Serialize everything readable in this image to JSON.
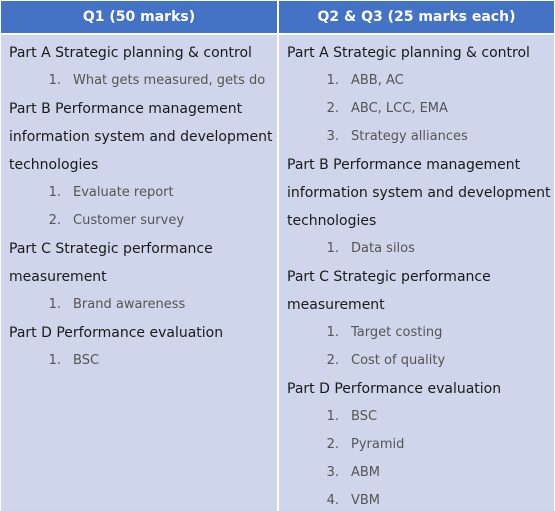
{
  "headers": {
    "left": "Q1 (50 marks)",
    "right": "Q2 & Q3 (25 marks each)"
  },
  "left": {
    "partA": {
      "title": "Part A Strategic planning & control",
      "items": [
        {
          "num": "1.",
          "text": "What gets measured, gets do"
        }
      ]
    },
    "partB": {
      "title_lines": [
        "Part B Performance management",
        "information system and development in",
        "technologies"
      ],
      "items": [
        {
          "num": "1.",
          "text": "Evaluate report"
        },
        {
          "num": "2.",
          "text": "Customer survey"
        }
      ]
    },
    "partC": {
      "title_lines": [
        "Part C Strategic performance",
        "measurement"
      ],
      "items": [
        {
          "num": "1.",
          "text": "Brand awareness"
        }
      ]
    },
    "partD": {
      "title": "Part D Performance evaluation",
      "items": [
        {
          "num": "1.",
          "text": "BSC"
        }
      ]
    }
  },
  "right": {
    "partA": {
      "title": "Part A Strategic planning & control",
      "items": [
        {
          "num": "1.",
          "text": "ABB, AC"
        },
        {
          "num": "2.",
          "text": "ABC, LCC, EMA"
        },
        {
          "num": "3.",
          "text": "Strategy alliances"
        }
      ]
    },
    "partB": {
      "title_lines": [
        "Part B Performance management",
        "information system and development in",
        "technologies"
      ],
      "items": [
        {
          "num": "1.",
          "text": "Data silos"
        }
      ]
    },
    "partC": {
      "title_lines": [
        "Part C Strategic performance",
        "measurement"
      ],
      "items": [
        {
          "num": "1.",
          "text": "Target costing"
        },
        {
          "num": "2.",
          "text": "Cost of quality"
        }
      ]
    },
    "partD": {
      "title": "Part D Performance evaluation",
      "items": [
        {
          "num": "1.",
          "text": "BSC"
        },
        {
          "num": "2.",
          "text": "Pyramid"
        },
        {
          "num": "3.",
          "text": "ABM"
        },
        {
          "num": "4.",
          "text": "VBM"
        }
      ]
    }
  },
  "colors": {
    "header_bg": "#4472c4",
    "header_text": "#ffffff",
    "body_bg": "#cfd5ea",
    "part_text": "#1a1a1a",
    "item_text": "#555555"
  }
}
